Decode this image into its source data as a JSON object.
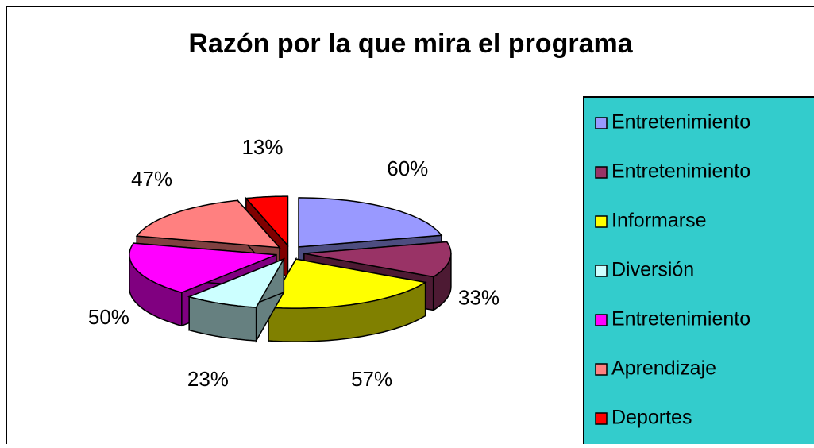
{
  "chart_data": {
    "type": "pie",
    "title": "Razón por la que mira el programa",
    "categories": [
      "Entretenimiento",
      "Entretenimiento",
      "Informarse",
      "Diversión",
      "Entretenimiento",
      "Aprendizaje",
      "Deportes"
    ],
    "values": [
      60,
      33,
      57,
      23,
      50,
      47,
      13
    ],
    "value_labels": [
      "60%",
      "33%",
      "57%",
      "23%",
      "50%",
      "47%",
      "13%"
    ],
    "colors": [
      "#9999ff",
      "#993366",
      "#ffff00",
      "#ccffff",
      "#ff00ff",
      "#ff8080",
      "#ff0000"
    ],
    "legend": "right"
  }
}
